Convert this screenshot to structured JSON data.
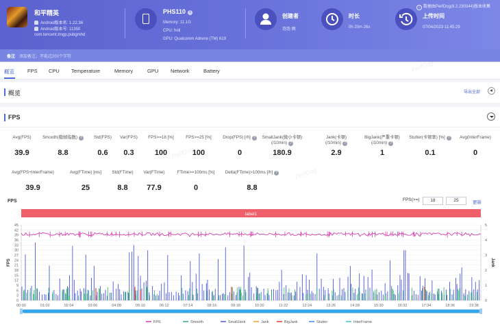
{
  "header": {
    "data_source": "数据由PerfDog(8.2.230344)版本收集",
    "app": {
      "name": "和平精英",
      "android_version_name": "Android版本名: 1.22.36",
      "android_version_code": "Android版本号: 11350",
      "package": "com.tencent.tmgp.pubgmhd"
    },
    "device": {
      "name": "PHS110",
      "memory": "Memory: 11.1G",
      "cpu": "CPU: holi",
      "gpu": "GPU: Qualcomm Adreno (TM) 619"
    },
    "creator": {
      "label": "创建者",
      "value": "泡泡 网"
    },
    "duration": {
      "label": "时长",
      "value": "0h 20m 26s"
    },
    "upload": {
      "label": "上传时间",
      "value": "07/04/2023 11:45:29"
    },
    "note": {
      "label": "备注",
      "placeholder": "添加备注，不能过200个字符"
    }
  },
  "tabs": [
    "概览",
    "FPS",
    "CPU",
    "Temperature",
    "Memory",
    "GPU",
    "Network",
    "Battery"
  ],
  "overview": {
    "title": "概览",
    "export": "导出全部"
  },
  "fps_section": {
    "title": "FPS",
    "metrics_row1": [
      {
        "label": "Avg(FPS)",
        "value": "39.9",
        "help": false
      },
      {
        "label": "Smooth(稳帧指数)",
        "value": "8.8",
        "help": true
      },
      {
        "label": "Std(FPS)",
        "value": "0.6",
        "help": false
      },
      {
        "label": "Var(FPS)",
        "value": "0.3",
        "help": false
      },
      {
        "label": "FPS>=18 [%]",
        "value": "100",
        "help": false
      },
      {
        "label": "FPS>=25 [%]",
        "value": "100",
        "help": false
      },
      {
        "label": "Drop(FPS) [/h]",
        "value": "0",
        "help": true
      },
      {
        "label": "SmallJank(微小卡顿)",
        "label2": "(/10min)",
        "value": "180.9",
        "help": true
      },
      {
        "label": "Jank(卡顿)",
        "label2": "(/10min)",
        "value": "2.9",
        "help": true
      },
      {
        "label": "BigJank(严重卡顿)",
        "label2": "(/10min)",
        "value": "1",
        "help": true
      },
      {
        "label": "Stutter(卡顿率) [%]",
        "value": "0.1",
        "help": true
      },
      {
        "label": "Avg(InterFrame)",
        "value": "0",
        "help": false
      }
    ],
    "metrics_row2": [
      {
        "label": "Avg(FPS+InterFrame)",
        "value": "39.9",
        "help": false
      },
      {
        "label": "Avg(FTime) [ms]",
        "value": "25",
        "help": false
      },
      {
        "label": "Std(FTime)",
        "value": "8.8",
        "help": false
      },
      {
        "label": "Var(FTime)",
        "value": "77.9",
        "help": false
      },
      {
        "label": "FTime>=100ms [%]",
        "value": "0",
        "help": false
      },
      {
        "label": "Delta(FTime)>100ms [/h]",
        "value": "8.8",
        "help": true
      }
    ],
    "watermark": "PerfDog",
    "threshold": {
      "label": "FPS(>=)",
      "low": "18",
      "high": "25",
      "apply": "更新"
    }
  },
  "chart_data": {
    "type": "line",
    "title": "FPS",
    "banner": "label1",
    "x_ticks": [
      "00:00",
      "01:02",
      "02:04",
      "03:06",
      "04:08",
      "05:10",
      "06:12",
      "07:14",
      "08:16",
      "09:18",
      "10:20",
      "11:22",
      "12:24",
      "13:26",
      "14:28",
      "15:30",
      "16:32",
      "17:34",
      "18:36",
      "19:38"
    ],
    "y_left": {
      "label": "FPS",
      "ticks": [
        0,
        3,
        6,
        9,
        12,
        15,
        18,
        21,
        24,
        27,
        30,
        33,
        36,
        39,
        42,
        45
      ]
    },
    "y_right": {
      "label": "Jank",
      "ticks": [
        0,
        1,
        2,
        3,
        4,
        5
      ]
    },
    "legend": [
      "FPS",
      "Smooth",
      "SmallJank",
      "Jank",
      "BigJank",
      "Stutter",
      "InterFrame"
    ],
    "legend_position": "bottom",
    "colors": {
      "FPS": "#d63fae",
      "Smooth": "#2db36f",
      "SmallJank": "#4a57d8",
      "Jank": "#f39c2b",
      "BigJank": "#e03a3a",
      "Stutter": "#3b82f6",
      "InterFrame": "#36c9c6",
      "banner": "#f0606a"
    },
    "series_summary": {
      "FPS": 39.9,
      "Smooth": 8.8,
      "SmallJank_per10min": 180.9,
      "Jank_per10min": 2.9,
      "BigJank_per10min": 1,
      "Stutter_percent": 0.1,
      "InterFrame": 0
    },
    "grid": true
  }
}
